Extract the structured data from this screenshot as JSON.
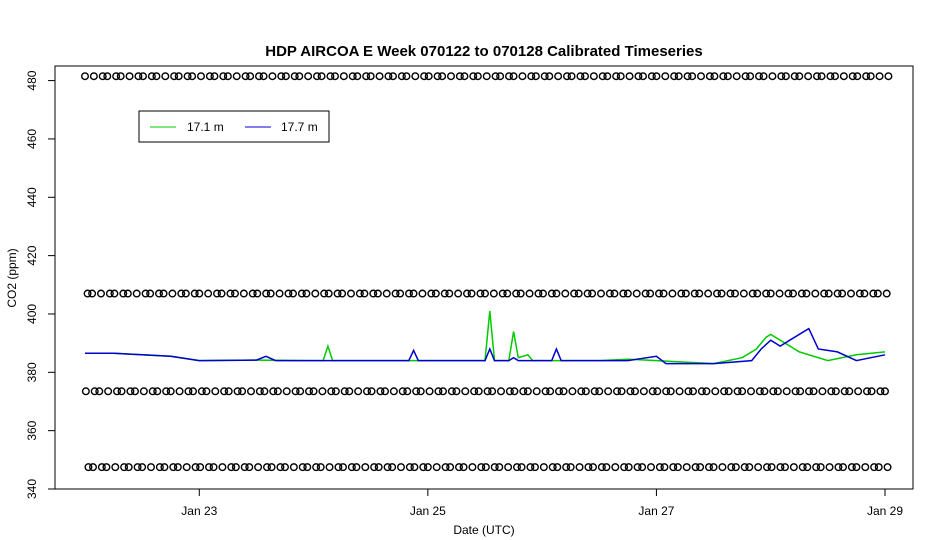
{
  "chart_data": {
    "type": "line",
    "title": "HDP AIRCOA E  Week 070122 to 070128  Calibrated Timeseries",
    "xlabel": "Date (UTC)",
    "ylabel": "CO2 (ppm)",
    "xlim": [
      "2007-01-22T00:00",
      "2007-01-29T00:00"
    ],
    "ylim": [
      340,
      485
    ],
    "x_ticks": [
      {
        "date": "2007-01-23",
        "label": "Jan 23"
      },
      {
        "date": "2007-01-25",
        "label": "Jan 25"
      },
      {
        "date": "2007-01-27",
        "label": "Jan 27"
      },
      {
        "date": "2007-01-29",
        "label": "Jan 29"
      }
    ],
    "y_ticks": [
      340,
      360,
      380,
      400,
      420,
      440,
      460,
      480
    ],
    "legend": {
      "position": "top-left",
      "entries": [
        {
          "name": "17.1 m",
          "color": "#00cc00"
        },
        {
          "name": "17.7 m",
          "color": "#0000cc"
        }
      ]
    },
    "series": [
      {
        "name": "17.1 m",
        "color": "#00cc00",
        "points": [
          [
            "2007-01-22T00:00",
            386.5
          ],
          [
            "2007-01-22T06:00",
            386.5
          ],
          [
            "2007-01-22T12:00",
            386.0
          ],
          [
            "2007-01-22T18:00",
            385.5
          ],
          [
            "2007-01-23T00:00",
            384.0
          ],
          [
            "2007-01-23T12:00",
            384.2
          ],
          [
            "2007-01-24T00:00",
            384.0
          ],
          [
            "2007-01-24T02:00",
            384.0
          ],
          [
            "2007-01-24T03:00",
            389.0
          ],
          [
            "2007-01-24T04:00",
            384.0
          ],
          [
            "2007-01-24T18:00",
            384.0
          ],
          [
            "2007-01-25T00:00",
            384.0
          ],
          [
            "2007-01-25T12:00",
            384.0
          ],
          [
            "2007-01-25T13:00",
            401.0
          ],
          [
            "2007-01-25T14:00",
            384.0
          ],
          [
            "2007-01-25T17:00",
            384.0
          ],
          [
            "2007-01-25T18:00",
            394.0
          ],
          [
            "2007-01-25T19:00",
            385.0
          ],
          [
            "2007-01-25T21:00",
            386.0
          ],
          [
            "2007-01-25T22:00",
            384.0
          ],
          [
            "2007-01-26T12:00",
            384.0
          ],
          [
            "2007-01-26T18:00",
            384.5
          ],
          [
            "2007-01-27T00:00",
            384.0
          ],
          [
            "2007-01-27T12:00",
            383.0
          ],
          [
            "2007-01-27T18:00",
            385.0
          ],
          [
            "2007-01-27T21:00",
            388.0
          ],
          [
            "2007-01-27T23:00",
            392.0
          ],
          [
            "2007-01-28T00:00",
            393.0
          ],
          [
            "2007-01-28T03:00",
            390.0
          ],
          [
            "2007-01-28T06:00",
            387.0
          ],
          [
            "2007-01-28T12:00",
            384.0
          ],
          [
            "2007-01-28T18:00",
            386.0
          ],
          [
            "2007-01-29T00:00",
            387.0
          ]
        ]
      },
      {
        "name": "17.7 m",
        "color": "#0000cc",
        "points": [
          [
            "2007-01-22T00:00",
            386.5
          ],
          [
            "2007-01-22T06:00",
            386.5
          ],
          [
            "2007-01-22T12:00",
            386.0
          ],
          [
            "2007-01-22T18:00",
            385.5
          ],
          [
            "2007-01-23T00:00",
            384.0
          ],
          [
            "2007-01-23T12:00",
            384.2
          ],
          [
            "2007-01-23T14:00",
            385.5
          ],
          [
            "2007-01-23T16:00",
            384.0
          ],
          [
            "2007-01-24T00:00",
            384.0
          ],
          [
            "2007-01-24T12:00",
            384.0
          ],
          [
            "2007-01-24T20:00",
            384.0
          ],
          [
            "2007-01-24T21:00",
            387.5
          ],
          [
            "2007-01-24T22:00",
            384.0
          ],
          [
            "2007-01-25T12:00",
            384.0
          ],
          [
            "2007-01-25T13:00",
            388.0
          ],
          [
            "2007-01-25T14:00",
            384.0
          ],
          [
            "2007-01-25T17:00",
            384.0
          ],
          [
            "2007-01-25T18:00",
            385.0
          ],
          [
            "2007-01-25T19:00",
            384.0
          ],
          [
            "2007-01-26T02:00",
            384.0
          ],
          [
            "2007-01-26T03:00",
            388.0
          ],
          [
            "2007-01-26T04:00",
            384.0
          ],
          [
            "2007-01-26T18:00",
            384.0
          ],
          [
            "2007-01-27T00:00",
            385.5
          ],
          [
            "2007-01-27T02:00",
            383.0
          ],
          [
            "2007-01-27T12:00",
            383.0
          ],
          [
            "2007-01-27T20:00",
            384.0
          ],
          [
            "2007-01-27T22:00",
            388.0
          ],
          [
            "2007-01-28T00:00",
            391.0
          ],
          [
            "2007-01-28T02:00",
            389.0
          ],
          [
            "2007-01-28T04:00",
            391.0
          ],
          [
            "2007-01-28T08:00",
            395.0
          ],
          [
            "2007-01-28T10:00",
            388.0
          ],
          [
            "2007-01-28T14:00",
            387.0
          ],
          [
            "2007-01-28T18:00",
            384.0
          ],
          [
            "2007-01-29T00:00",
            386.0
          ]
        ]
      }
    ],
    "marker_rows": [
      {
        "value": 481.5,
        "marker": "o"
      },
      {
        "value": 407.0,
        "marker": "o"
      },
      {
        "value": 373.5,
        "marker": "o"
      },
      {
        "value": 347.5,
        "marker": "o"
      }
    ]
  }
}
